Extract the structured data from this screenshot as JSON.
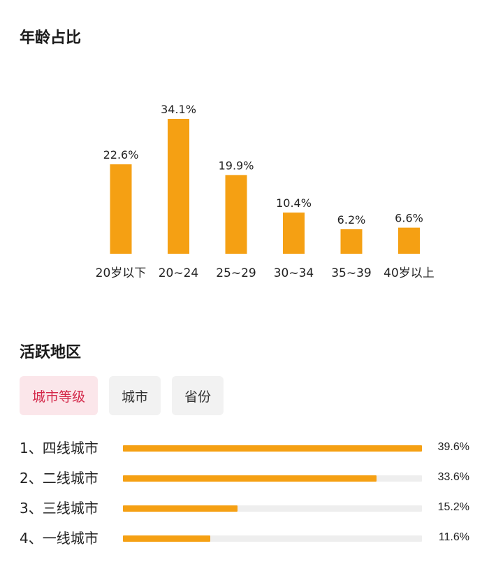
{
  "age_section": {
    "title": "年龄占比"
  },
  "chart_data": {
    "type": "bar",
    "categories": [
      "20岁以下",
      "20~24",
      "25~29",
      "30~34",
      "35~39",
      "40岁以上"
    ],
    "values": [
      22.6,
      34.1,
      19.9,
      10.4,
      6.2,
      6.6
    ],
    "value_labels": [
      "22.6%",
      "34.1%",
      "19.9%",
      "10.4%",
      "6.2%",
      "6.6%"
    ],
    "title": "",
    "xlabel": "",
    "ylabel": "",
    "ylim": [
      0,
      34.1
    ],
    "grid": false,
    "bar_color": "#f5a013"
  },
  "region_section": {
    "title": "活跃地区",
    "tabs": [
      {
        "label": "城市等级",
        "active": true
      },
      {
        "label": "城市",
        "active": false
      },
      {
        "label": "省份",
        "active": false
      }
    ],
    "items": [
      {
        "label": "1、四线城市",
        "value": 39.6,
        "value_label": "39.6%"
      },
      {
        "label": "2、二线城市",
        "value": 33.6,
        "value_label": "33.6%"
      },
      {
        "label": "3、三线城市",
        "value": 15.2,
        "value_label": "15.2%"
      },
      {
        "label": "4、一线城市",
        "value": 11.6,
        "value_label": "11.6%"
      }
    ]
  },
  "colors": {
    "accent": "#f5a013",
    "track": "#eeeeee",
    "tab_active_bg": "#fbe6ea",
    "tab_active_text": "#d4284a",
    "tab_bg": "#f2f2f2"
  }
}
